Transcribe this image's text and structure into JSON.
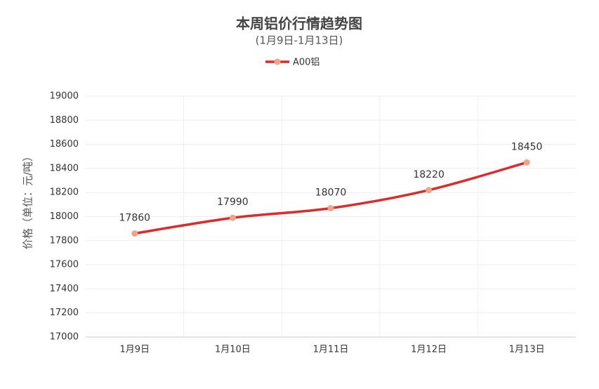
{
  "chart_data": {
    "type": "line",
    "title": "本周铝价行情趋势图",
    "subtitle": "(1月9日-1月13日)",
    "y_label": "价格（单位：元/吨）",
    "categories": [
      "1月9日",
      "1月10日",
      "1月11日",
      "1月12日",
      "1月13日"
    ],
    "series": [
      {
        "name": "A00铝",
        "color": "#dd2a2a",
        "marker_color": "#f0a386",
        "values": [
          17860,
          17990,
          18070,
          18220,
          18450
        ]
      }
    ],
    "ylim": [
      17000,
      19000
    ],
    "yticks": [
      17000,
      17200,
      17400,
      17600,
      17800,
      18000,
      18200,
      18400,
      18600,
      18800,
      19000
    ],
    "grid": true,
    "smooth": true,
    "data_labels": true
  }
}
